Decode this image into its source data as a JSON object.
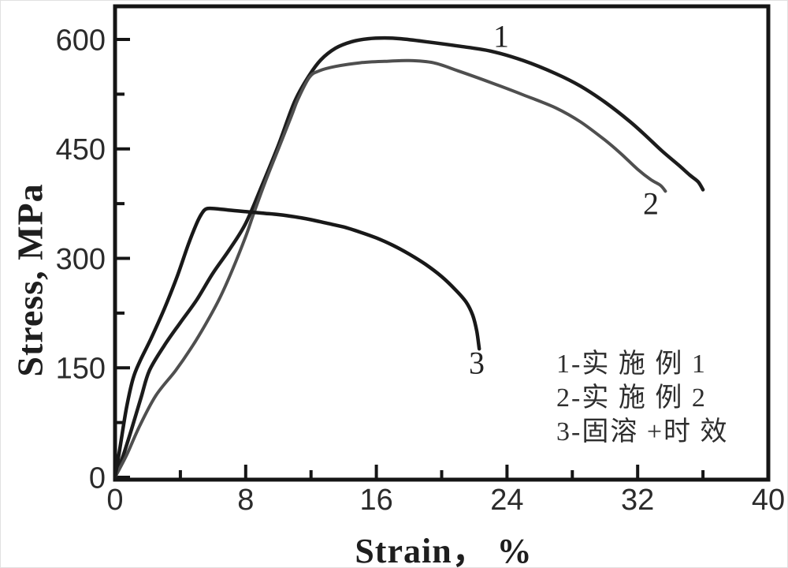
{
  "chart_data": {
    "type": "line",
    "title": "",
    "xlabel": "Strain， %",
    "ylabel": "Stress, MPa",
    "xlim": [
      0,
      40
    ],
    "ylim": [
      0,
      645
    ],
    "grid": false,
    "xticks_major": [
      0,
      8,
      16,
      24,
      32,
      40
    ],
    "xticks_minor": [
      4,
      12,
      20,
      28,
      36
    ],
    "yticks_major": [
      0,
      150,
      300,
      450,
      600
    ],
    "yticks_minor": [
      75,
      225,
      375,
      525
    ],
    "legend_position": "inside lower right",
    "legend": [
      "1-实 施 例 1",
      "2-实 施 例 2",
      "3-固溶 +时 效"
    ],
    "frame_color": "#151515",
    "tick_label_color": "#2b2b2b",
    "series": [
      {
        "name": "1-实 施 例 1",
        "label_text": "1",
        "color": "#1c1c1c",
        "line_width": 4.5,
        "points": [
          [
            0,
            0
          ],
          [
            0.5,
            30
          ],
          [
            1,
            65
          ],
          [
            1.6,
            110
          ],
          [
            2.1,
            146
          ],
          [
            3,
            180
          ],
          [
            4,
            212
          ],
          [
            5,
            243
          ],
          [
            6,
            280
          ],
          [
            7,
            312
          ],
          [
            8,
            348
          ],
          [
            9,
            400
          ],
          [
            10,
            455
          ],
          [
            11,
            515
          ],
          [
            11.9,
            551
          ],
          [
            12.6,
            572
          ],
          [
            13.5,
            588
          ],
          [
            14.5,
            597
          ],
          [
            15.5,
            601
          ],
          [
            16.5,
            602
          ],
          [
            17.5,
            601
          ],
          [
            19,
            597
          ],
          [
            21,
            591
          ],
          [
            23,
            584
          ],
          [
            25,
            571
          ],
          [
            27,
            553
          ],
          [
            28.5,
            536
          ],
          [
            30,
            514
          ],
          [
            31.5,
            488
          ],
          [
            32.5,
            468
          ],
          [
            33.5,
            447
          ],
          [
            34.5,
            428
          ],
          [
            35.2,
            414
          ],
          [
            35.7,
            405
          ],
          [
            36,
            394
          ]
        ]
      },
      {
        "name": "2-实 施 例 2",
        "label_text": "2",
        "color": "#4f4f4f",
        "line_width": 4,
        "points": [
          [
            0,
            0
          ],
          [
            0.7,
            30
          ],
          [
            1.5,
            70
          ],
          [
            2.5,
            112
          ],
          [
            3.7,
            146
          ],
          [
            4.6,
            175
          ],
          [
            5.5,
            208
          ],
          [
            6.4,
            245
          ],
          [
            7.2,
            285
          ],
          [
            8,
            330
          ],
          [
            8.5,
            362
          ],
          [
            9.2,
            405
          ],
          [
            10,
            450
          ],
          [
            10.8,
            495
          ],
          [
            11.2,
            518
          ],
          [
            11.9,
            548
          ],
          [
            12.5,
            557
          ],
          [
            13.5,
            563
          ],
          [
            15,
            568
          ],
          [
            16.5,
            570
          ],
          [
            18,
            571
          ],
          [
            19.5,
            568
          ],
          [
            21,
            557
          ],
          [
            23,
            541
          ],
          [
            25,
            524
          ],
          [
            27,
            506
          ],
          [
            28.5,
            487
          ],
          [
            30,
            462
          ],
          [
            31,
            443
          ],
          [
            32,
            422
          ],
          [
            32.8,
            408
          ],
          [
            33.4,
            400
          ],
          [
            33.7,
            392
          ]
        ]
      },
      {
        "name": "3-固溶 +时 效",
        "label_text": "3",
        "color": "#181818",
        "line_width": 4.5,
        "points": [
          [
            0,
            0
          ],
          [
            0.3,
            40
          ],
          [
            0.7,
            95
          ],
          [
            1.1,
            135
          ],
          [
            1.5,
            158
          ],
          [
            2.2,
            190
          ],
          [
            3,
            230
          ],
          [
            3.8,
            275
          ],
          [
            4.5,
            320
          ],
          [
            5,
            348
          ],
          [
            5.3,
            361
          ],
          [
            5.6,
            368
          ],
          [
            6.2,
            368
          ],
          [
            7,
            366
          ],
          [
            8,
            364
          ],
          [
            9,
            362
          ],
          [
            10,
            360
          ],
          [
            11,
            357
          ],
          [
            12,
            353
          ],
          [
            13,
            348
          ],
          [
            14,
            343
          ],
          [
            15,
            336
          ],
          [
            16,
            328
          ],
          [
            17,
            318
          ],
          [
            18,
            306
          ],
          [
            19,
            292
          ],
          [
            20,
            275
          ],
          [
            20.8,
            258
          ],
          [
            21.5,
            240
          ],
          [
            21.9,
            222
          ],
          [
            22.15,
            200
          ],
          [
            22.3,
            176
          ]
        ]
      }
    ]
  }
}
